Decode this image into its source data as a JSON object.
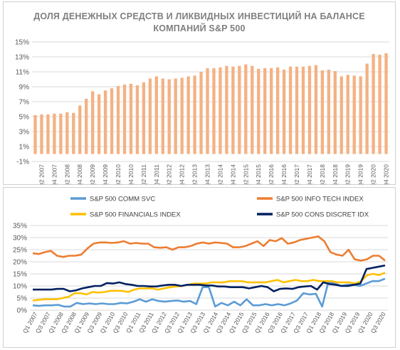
{
  "chart_data": [
    {
      "type": "bar",
      "title_line1": "ДОЛЯ ДЕНЕЖНЫХ СРЕДСТВ И ЛИКВИДНЫХ ИНВЕСТИЦИЙ НА БАЛАНСЕ",
      "title_line2": "КОМПАНИЙ S&P 500",
      "ylim": [
        -1,
        15
      ],
      "yticks": [
        "-1%",
        "1%",
        "3%",
        "5%",
        "7%",
        "9%",
        "11%",
        "13%",
        "15%"
      ],
      "ytick_values": [
        -1,
        1,
        3,
        5,
        7,
        9,
        11,
        13,
        15
      ],
      "xtick_labels": [
        "Q2 2007",
        "Q4 2007",
        "Q2 2008",
        "Q4 2008",
        "Q2 2009",
        "Q4 2009",
        "Q2 2010",
        "Q4 2010",
        "Q2 2011",
        "Q4 2011",
        "Q2 2012",
        "Q4 2012",
        "Q2 2013",
        "Q4 2013",
        "Q2 2014",
        "Q4 2014",
        "Q2 2015",
        "Q4 2015",
        "Q2 2016",
        "Q4 2016",
        "Q2 2017",
        "Q4 2017",
        "Q2 2018",
        "Q4 2018",
        "Q2 2019",
        "Q4 2019",
        "Q2 2020",
        "Q4 2020"
      ],
      "grid": true,
      "colors": {
        "bar": "#f4b183"
      },
      "values": [
        5.2,
        5.3,
        5.3,
        5.4,
        5.4,
        5.6,
        5.5,
        6.5,
        7.4,
        8.4,
        8.0,
        8.5,
        8.8,
        9.1,
        9.3,
        9.4,
        9.2,
        9.6,
        10.1,
        10.4,
        10.1,
        10.0,
        10.1,
        10.2,
        10.4,
        10.5,
        11.0,
        11.5,
        11.5,
        11.6,
        11.8,
        11.7,
        11.8,
        12.0,
        11.8,
        11.4,
        11.5,
        11.5,
        11.6,
        11.3,
        11.7,
        11.7,
        11.7,
        11.8,
        11.9,
        11.2,
        11.3,
        11.1,
        10.4,
        10.6,
        10.5,
        10.4,
        12.1,
        13.4,
        13.3,
        13.5
      ]
    },
    {
      "type": "line",
      "ylim": [
        0,
        35
      ],
      "yticks": [
        "0%",
        "5%",
        "10%",
        "15%",
        "20%",
        "25%",
        "30%",
        "35%"
      ],
      "ytick_values": [
        0,
        5,
        10,
        15,
        20,
        25,
        30,
        35
      ],
      "xtick_labels": [
        "Q1 2007",
        "Q3 2007",
        "Q1 2008",
        "Q3 2008",
        "Q1 2009",
        "Q3 2009",
        "Q1 2010",
        "Q3 2010",
        "Q1 2011",
        "Q3 2011",
        "Q1 2012",
        "Q3 2012",
        "Q1 2013",
        "Q3 2013",
        "Q1 2014",
        "Q3 2014",
        "Q1 2015",
        "Q3 2015",
        "Q1 2016",
        "Q3 2016",
        "Q1 2017",
        "Q3 2017",
        "Q1 2018",
        "Q3 2018",
        "Q1 2019",
        "Q3 2019",
        "Q1 2020",
        "Q3 2020"
      ],
      "grid": true,
      "legend": [
        "S&P 500 COMM SVC",
        "S&P 500 INFO TECH INDEX",
        "S&P 500 FINANCIALS INDEX",
        "S&P 500 CONS DISCRET IDX"
      ],
      "series": [
        {
          "name": "S&P 500 COMM SVC",
          "color": "#5b9bd5",
          "values": [
            2.0,
            1.8,
            2.0,
            2.0,
            2.2,
            1.5,
            1.5,
            3.0,
            2.5,
            2.8,
            2.5,
            2.8,
            2.5,
            2.5,
            3.0,
            2.8,
            3.5,
            4.5,
            3.5,
            4.5,
            3.8,
            3.5,
            3.8,
            4.0,
            3.5,
            3.8,
            2.5,
            9.5,
            9.5,
            1.5,
            3.0,
            2.0,
            3.5,
            2.0,
            4.5,
            2.0,
            2.0,
            2.5,
            2.0,
            2.5,
            2.0,
            2.8,
            4.0,
            7.0,
            6.5,
            6.8,
            1.5,
            11.8,
            11.0,
            10.0,
            10.5,
            10.5,
            10.0,
            11.0,
            12.0,
            12.0,
            13.0
          ]
        },
        {
          "name": "S&P 500 INFO TECH INDEX",
          "color": "#ed7d31",
          "values": [
            23.5,
            23.2,
            24.0,
            24.5,
            22.5,
            22.0,
            22.5,
            22.5,
            23.0,
            25.5,
            27.5,
            28.0,
            28.0,
            27.8,
            28.0,
            28.5,
            27.5,
            27.8,
            27.5,
            27.5,
            26.0,
            25.8,
            26.0,
            25.0,
            26.0,
            26.0,
            26.5,
            27.5,
            28.0,
            27.5,
            28.0,
            27.8,
            27.5,
            26.0,
            26.0,
            26.5,
            27.5,
            28.5,
            26.5,
            29.0,
            28.5,
            29.8,
            27.5,
            28.0,
            29.0,
            29.5,
            30.0,
            30.5,
            28.5,
            24.0,
            23.0,
            22.5,
            25.0,
            21.0,
            20.5,
            21.0,
            22.5,
            22.5,
            20.5
          ]
        },
        {
          "name": "S&P 500 FINANCIALS INDEX",
          "color": "#ffc000",
          "values": [
            4.0,
            4.3,
            4.5,
            4.5,
            4.5,
            5.0,
            5.5,
            7.0,
            7.0,
            6.5,
            7.5,
            7.3,
            7.5,
            8.0,
            8.0,
            8.0,
            7.5,
            8.5,
            9.0,
            9.0,
            9.0,
            8.5,
            9.0,
            9.5,
            9.8,
            10.0,
            10.5,
            11.0,
            11.0,
            11.0,
            11.5,
            11.5,
            11.5,
            12.0,
            12.0,
            12.0,
            11.5,
            11.5,
            11.5,
            11.5,
            12.0,
            12.5,
            11.5,
            12.0,
            12.5,
            12.0,
            12.0,
            12.5,
            12.0,
            12.0,
            12.0,
            11.5,
            11.5,
            11.5,
            11.0,
            12.0,
            14.5,
            15.0,
            14.5,
            15.5
          ]
        },
        {
          "name": "S&P 500 CONS DISCRET IDX",
          "color": "#002060",
          "values": [
            8.5,
            8.5,
            8.5,
            8.5,
            8.8,
            8.8,
            7.8,
            8.2,
            9.0,
            9.5,
            10.0,
            10.0,
            11.2,
            11.0,
            11.5,
            10.8,
            10.5,
            10.0,
            10.0,
            9.8,
            9.8,
            10.2,
            10.5,
            10.5,
            10.0,
            10.5,
            10.5,
            10.5,
            10.2,
            10.2,
            9.8,
            9.8,
            9.5,
            9.5,
            9.5,
            9.0,
            9.5,
            10.0,
            9.5,
            7.8,
            8.8,
            9.0,
            8.8,
            9.5,
            9.8,
            10.0,
            8.5,
            11.5,
            10.8,
            10.5,
            10.0,
            10.0,
            10.5,
            11.0,
            17.0,
            17.5,
            18.0,
            18.5
          ]
        }
      ]
    }
  ]
}
